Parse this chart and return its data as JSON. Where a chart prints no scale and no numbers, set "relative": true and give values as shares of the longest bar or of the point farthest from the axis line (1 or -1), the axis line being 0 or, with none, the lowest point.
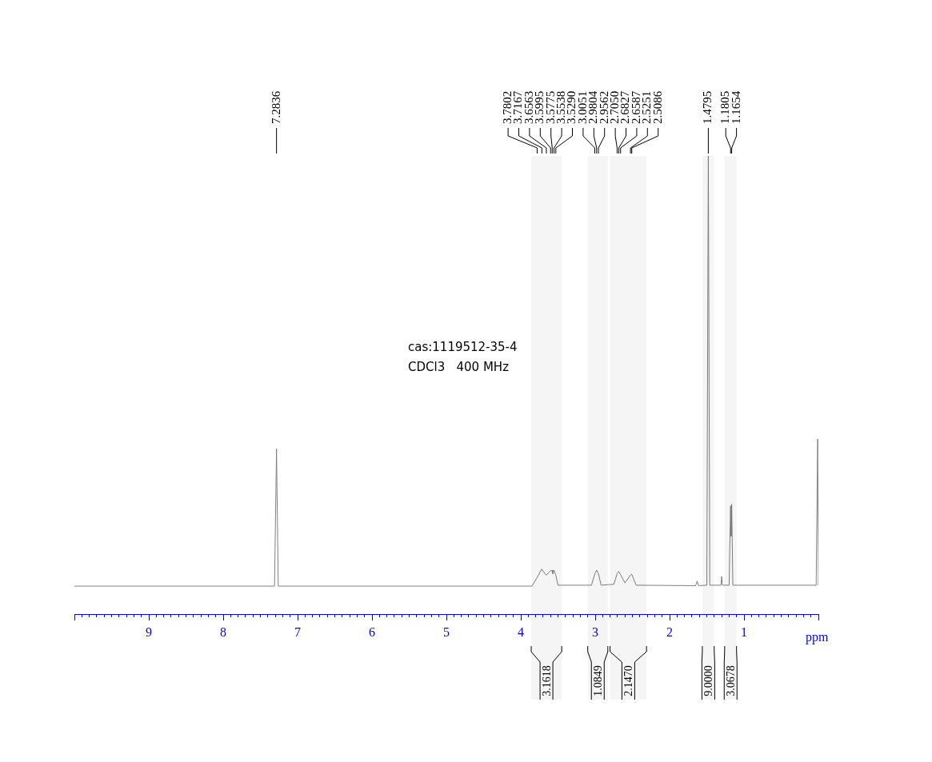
{
  "chart_data": {
    "type": "line",
    "relative": true,
    "xlabel": "ppm",
    "xlim": [
      10,
      0
    ],
    "xticks": [
      {
        "value": 0,
        "label": null
      },
      1,
      2,
      3,
      4,
      5,
      6,
      7,
      8,
      9,
      {
        "value": 10,
        "label": null
      },
      {
        "value": 0.1,
        "label": null
      },
      {
        "value": 0.2,
        "label": null
      },
      {
        "value": 0.3,
        "label": null
      },
      {
        "value": 0.4,
        "label": null
      },
      {
        "value": 0.5,
        "label": null
      },
      {
        "value": 0.6,
        "label": null
      },
      {
        "value": 0.7,
        "label": null
      },
      {
        "value": 0.8,
        "label": null
      },
      {
        "value": 0.9,
        "label": null
      },
      {
        "value": 1.1,
        "label": null
      },
      {
        "value": 1.2,
        "label": null
      },
      {
        "value": 1.3,
        "label": null
      },
      {
        "value": 1.4,
        "label": null
      },
      {
        "value": 1.5,
        "label": null
      },
      {
        "value": 1.6,
        "label": null
      },
      {
        "value": 1.7,
        "label": null
      },
      {
        "value": 1.8,
        "label": null
      },
      {
        "value": 1.9,
        "label": null
      },
      {
        "value": 2.1,
        "label": null
      },
      {
        "value": 2.2,
        "label": null
      },
      {
        "value": 2.3,
        "label": null
      },
      {
        "value": 2.4,
        "label": null
      },
      {
        "value": 2.5,
        "label": null
      },
      {
        "value": 2.6,
        "label": null
      },
      {
        "value": 2.7,
        "label": null
      },
      {
        "value": 2.8,
        "label": null
      },
      {
        "value": 2.9,
        "label": null
      },
      {
        "value": 3.1,
        "label": null
      },
      {
        "value": 3.2,
        "label": null
      },
      {
        "value": 3.3,
        "label": null
      },
      {
        "value": 3.4,
        "label": null
      },
      {
        "value": 3.5,
        "label": null
      },
      {
        "value": 3.6,
        "label": null
      },
      {
        "value": 3.7,
        "label": null
      },
      {
        "value": 3.8,
        "label": null
      },
      {
        "value": 3.9,
        "label": null
      },
      {
        "value": 4.1,
        "label": null
      },
      {
        "value": 4.2,
        "label": null
      },
      {
        "value": 4.3,
        "label": null
      },
      {
        "value": 4.4,
        "label": null
      },
      {
        "value": 4.5,
        "label": null
      },
      {
        "value": 4.6,
        "label": null
      },
      {
        "value": 4.7,
        "label": null
      },
      {
        "value": 4.8,
        "label": null
      },
      {
        "value": 4.9,
        "label": null
      },
      {
        "value": 5.1,
        "label": null
      },
      {
        "value": 5.2,
        "label": null
      },
      {
        "value": 5.3,
        "label": null
      },
      {
        "value": 5.4,
        "label": null
      },
      {
        "value": 5.5,
        "label": null
      },
      {
        "value": 5.6,
        "label": null
      },
      {
        "value": 5.7,
        "label": null
      },
      {
        "value": 5.8,
        "label": null
      },
      {
        "value": 5.9,
        "label": null
      },
      {
        "value": 6.1,
        "label": null
      },
      {
        "value": 6.2,
        "label": null
      },
      {
        "value": 6.3,
        "label": null
      },
      {
        "value": 6.4,
        "label": null
      },
      {
        "value": 6.5,
        "label": null
      },
      {
        "value": 6.6,
        "label": null
      },
      {
        "value": 6.7,
        "label": null
      },
      {
        "value": 6.8,
        "label": null
      },
      {
        "value": 6.9,
        "label": null
      },
      {
        "value": 7.1,
        "label": null
      },
      {
        "value": 7.2,
        "label": null
      },
      {
        "value": 7.3,
        "label": null
      },
      {
        "value": 7.4,
        "label": null
      },
      {
        "value": 7.5,
        "label": null
      },
      {
        "value": 7.6,
        "label": null
      },
      {
        "value": 7.7,
        "label": null
      },
      {
        "value": 7.8,
        "label": null
      },
      {
        "value": 7.9,
        "label": null
      },
      {
        "value": 8.1,
        "label": null
      },
      {
        "value": 8.2,
        "label": null
      },
      {
        "value": 8.3,
        "label": null
      },
      {
        "value": 8.4,
        "label": null
      },
      {
        "value": 8.5,
        "label": null
      },
      {
        "value": 8.6,
        "label": null
      },
      {
        "value": 8.7,
        "label": null
      },
      {
        "value": 8.8,
        "label": null
      },
      {
        "value": 8.9,
        "label": null
      },
      {
        "value": 9.1,
        "label": null
      },
      {
        "value": 9.2,
        "label": null
      },
      {
        "value": 9.3,
        "label": null
      },
      {
        "value": 9.4,
        "label": null
      },
      {
        "value": 9.5,
        "label": null
      },
      {
        "value": 9.6,
        "label": null
      },
      {
        "value": 9.7,
        "label": null
      },
      {
        "value": 9.8,
        "label": null
      },
      {
        "value": 9.9,
        "label": null
      }
    ],
    "series": [
      {
        "color": "#808080",
        "x": [
          10,
          7.31,
          7.2836,
          7.26,
          3.85,
          3.78,
          3.72,
          3.66,
          3.6,
          3.58,
          3.57,
          3.555,
          3.53,
          3.5,
          3.05,
          3.005,
          2.98,
          2.956,
          2.92,
          2.75,
          2.705,
          2.683,
          2.659,
          2.6,
          2.525,
          2.509,
          2.45,
          1.65,
          1.63,
          1.61,
          1.5,
          1.4795,
          1.46,
          1.31,
          1.3,
          1.29,
          1.2,
          1.1805,
          1.173,
          1.1654,
          1.15,
          1.05,
          0.03,
          0.01,
          0
        ],
        "values": [
          0.061,
          0.061,
          0.361,
          0.061,
          0.061,
          0.08,
          0.098,
          0.085,
          0.094,
          0.096,
          0.088,
          0.096,
          0.085,
          0.063,
          0.063,
          0.088,
          0.096,
          0.088,
          0.063,
          0.065,
          0.088,
          0.093,
          0.086,
          0.068,
          0.085,
          0.087,
          0.063,
          0.062,
          0.072,
          0.062,
          0.063,
          1,
          0.063,
          0.063,
          0.082,
          0.063,
          0.063,
          0.236,
          0.17,
          0.24,
          0.063,
          0.063,
          0.063,
          0.382,
          0.063
        ]
      }
    ],
    "bands": [
      {
        "axis": "x",
        "from": 3.86,
        "to": 3.45,
        "label": "3.1618"
      },
      {
        "axis": "x",
        "from": 3.1,
        "to": 2.83,
        "label": "1.0849"
      },
      {
        "axis": "x",
        "from": 2.8,
        "to": 2.31,
        "label": "2.1470"
      },
      {
        "axis": "x",
        "from": 1.56,
        "to": 1.4,
        "label": "9.0000"
      },
      {
        "axis": "x",
        "from": 1.26,
        "to": 1.1,
        "label": "3.0678"
      }
    ],
    "annotations": [
      "cas:1119512-35-4",
      "CDCl3   400 MHz",
      {
        "text": "7.2836",
        "x": 7.2836
      },
      {
        "text": "3.7802",
        "x": 3.7802
      },
      {
        "text": "3.7167",
        "x": 3.7167
      },
      {
        "text": "3.6563",
        "x": 3.6563
      },
      {
        "text": "3.5995",
        "x": 3.5995
      },
      {
        "text": "3.5775",
        "x": 3.5775
      },
      {
        "text": "3.5538",
        "x": 3.5538
      },
      {
        "text": "3.5290",
        "x": 3.529
      },
      {
        "text": "3.0051",
        "x": 3.0051
      },
      {
        "text": "2.9804",
        "x": 2.9804
      },
      {
        "text": "2.9562",
        "x": 2.9562
      },
      {
        "text": "2.7050",
        "x": 2.705
      },
      {
        "text": "2.6827",
        "x": 2.6827
      },
      {
        "text": "2.6587",
        "x": 2.6587
      },
      {
        "text": "2.5251",
        "x": 2.5251
      },
      {
        "text": "2.5086",
        "x": 2.5086
      },
      {
        "text": "1.4795",
        "x": 1.4795
      },
      {
        "text": "1.1805",
        "x": 1.1805
      },
      {
        "text": "1.1654",
        "x": 1.1654
      }
    ]
  }
}
